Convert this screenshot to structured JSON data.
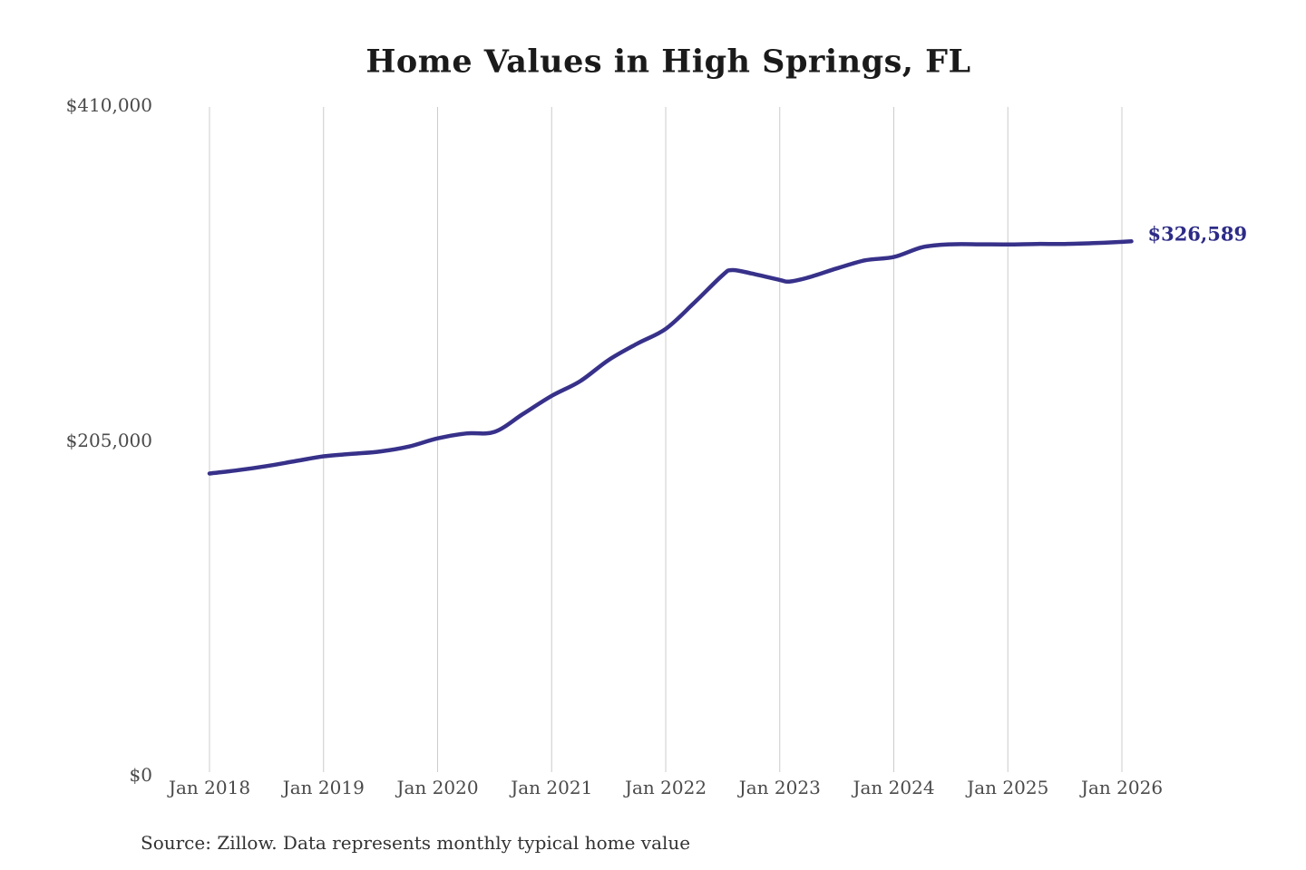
{
  "chart_data": {
    "type": "line",
    "title": "Home Values in High Springs, FL",
    "source_note": "Source: Zillow. Data represents monthly typical home value",
    "end_label": "$326,589",
    "latest_value": 326589,
    "ylim": [
      0,
      410000
    ],
    "y_ticks": [
      {
        "label": "$410,000",
        "value": 410000
      },
      {
        "label": "$205,000",
        "value": 205000
      },
      {
        "label": "$0",
        "value": 0
      }
    ],
    "x_ticks": [
      "Jan 2018",
      "Jan 2019",
      "Jan 2020",
      "Jan 2021",
      "Jan 2022",
      "Jan 2023",
      "Jan 2024",
      "Jan 2025",
      "Jan 2026"
    ],
    "grid": true,
    "legend": "none",
    "colors": {
      "line": "#37318a",
      "end_label": "#2d2b87",
      "gridline": "#cccccc",
      "axis_text": "#4a4a4a",
      "title_text": "#1a1a1a"
    },
    "series": [
      {
        "name": "Monthly typical home value",
        "points": [
          [
            "2018-01",
            184500
          ],
          [
            "2018-04",
            186500
          ],
          [
            "2018-07",
            189000
          ],
          [
            "2018-10",
            192000
          ],
          [
            "2019-01",
            195000
          ],
          [
            "2019-04",
            196500
          ],
          [
            "2019-07",
            198000
          ],
          [
            "2019-10",
            201000
          ],
          [
            "2020-01",
            206000
          ],
          [
            "2020-04",
            209000
          ],
          [
            "2020-07",
            210000
          ],
          [
            "2020-10",
            221000
          ],
          [
            "2021-01",
            232000
          ],
          [
            "2021-04",
            241000
          ],
          [
            "2021-07",
            254000
          ],
          [
            "2021-10",
            264000
          ],
          [
            "2022-01",
            273000
          ],
          [
            "2022-04",
            289000
          ],
          [
            "2022-07",
            306000
          ],
          [
            "2022-08",
            309000
          ],
          [
            "2022-10",
            307000
          ],
          [
            "2023-01",
            303000
          ],
          [
            "2023-02",
            302000
          ],
          [
            "2023-04",
            304500
          ],
          [
            "2023-07",
            310000
          ],
          [
            "2023-10",
            315000
          ],
          [
            "2024-01",
            317000
          ],
          [
            "2024-04",
            323000
          ],
          [
            "2024-07",
            324800
          ],
          [
            "2024-10",
            324800
          ],
          [
            "2025-01",
            324700
          ],
          [
            "2025-04",
            325000
          ],
          [
            "2025-07",
            325000
          ],
          [
            "2025-10",
            325500
          ],
          [
            "2026-01",
            326300
          ],
          [
            "2026-02",
            326589
          ]
        ]
      }
    ]
  }
}
